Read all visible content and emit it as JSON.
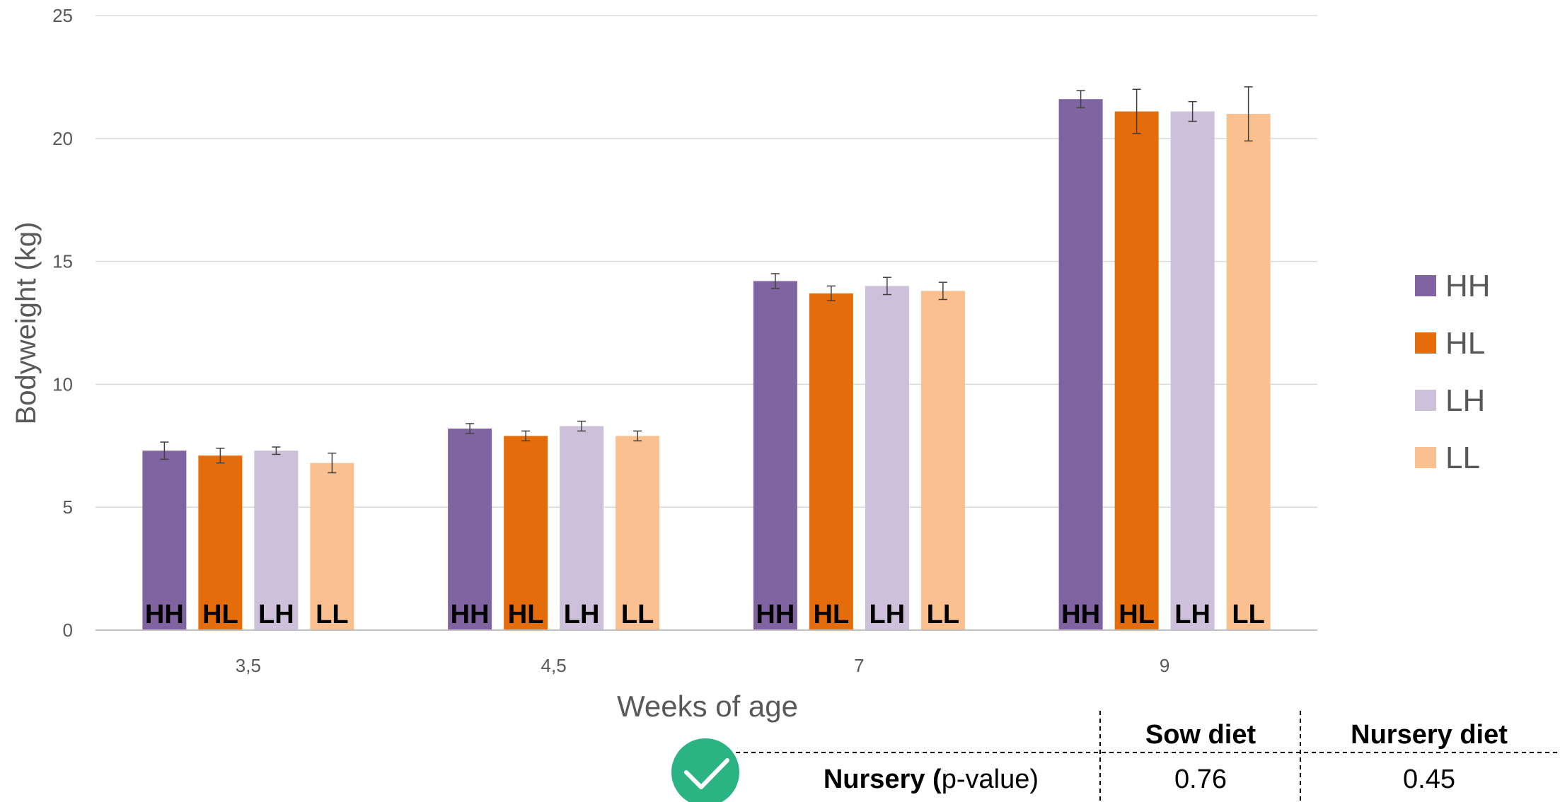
{
  "chart_data": {
    "type": "bar",
    "xlabel": "Weeks of age",
    "ylabel": "Bodyweight (kg)",
    "ylim": [
      0,
      25
    ],
    "yticks": [
      0,
      5,
      10,
      15,
      20,
      25
    ],
    "grid": true,
    "legend_position": "right",
    "categories": [
      "3,5",
      "4,5",
      "7",
      "9"
    ],
    "series": [
      {
        "name": "HH",
        "color": "#8064A2",
        "values": [
          7.3,
          8.2,
          14.2,
          21.6
        ],
        "errors": [
          0.35,
          0.2,
          0.3,
          0.35
        ]
      },
      {
        "name": "HL",
        "color": "#E46C0A",
        "values": [
          7.1,
          7.9,
          13.7,
          21.1
        ],
        "errors": [
          0.3,
          0.2,
          0.3,
          0.9
        ]
      },
      {
        "name": "LH",
        "color": "#CCC0DA",
        "values": [
          7.3,
          8.3,
          14.0,
          21.1
        ],
        "errors": [
          0.15,
          0.2,
          0.35,
          0.4
        ]
      },
      {
        "name": "LL",
        "color": "#FAC090",
        "values": [
          6.8,
          7.9,
          13.8,
          21.0
        ],
        "errors": [
          0.4,
          0.2,
          0.35,
          1.1
        ]
      }
    ]
  },
  "stats_table": {
    "headers": [
      "Sow diet",
      "Nursery diet"
    ],
    "row_label_bold": "Nursery (",
    "row_label_rest": "p-value)",
    "values": [
      "0.76",
      "0.45"
    ],
    "badge_color": "#2BB383"
  }
}
